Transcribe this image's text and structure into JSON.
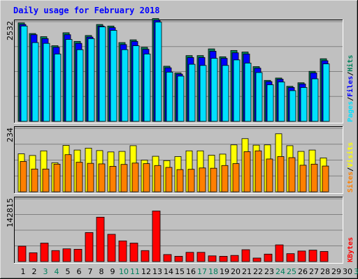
{
  "title": "Daily usage for February 2018",
  "colors": {
    "hits": "#00805c",
    "files": "#0000ff",
    "pages": "#00e0ff",
    "visits": "#ffff00",
    "sites": "#ff8000",
    "kbytes": "#ff0000",
    "weekday_label": "#000000",
    "weekend_label": "#00805c"
  },
  "chart_data": [
    {
      "type": "bar",
      "panel": "hits-files-pages",
      "title": "Daily usage for February 2018",
      "max_label": "2532",
      "ylim": [
        0,
        2532
      ],
      "grid": true,
      "legend": "right",
      "legend_parts": [
        "Pages",
        "/",
        "Files",
        "/",
        "Hits"
      ],
      "categories": [
        "1",
        "2",
        "3",
        "4",
        "5",
        "6",
        "7",
        "8",
        "9",
        "10",
        "11",
        "12",
        "13",
        "14",
        "15",
        "16",
        "17",
        "18",
        "19",
        "20",
        "21",
        "22",
        "23",
        "24",
        "25",
        "26",
        "27",
        "28"
      ],
      "series": [
        {
          "name": "Hits",
          "values": [
            2500,
            2230,
            2150,
            1920,
            2250,
            2030,
            2180,
            2460,
            2420,
            2000,
            2070,
            1880,
            2610,
            1400,
            1230,
            1670,
            1670,
            1840,
            1640,
            1800,
            1760,
            1390,
            1040,
            1100,
            890,
            980,
            1270,
            1590
          ]
        },
        {
          "name": "Files",
          "values": [
            2460,
            2200,
            2100,
            1880,
            2200,
            1980,
            2140,
            2420,
            2380,
            1950,
            2030,
            1830,
            2570,
            1360,
            1200,
            1620,
            1620,
            1780,
            1600,
            1740,
            1710,
            1350,
            1010,
            1070,
            860,
            950,
            1230,
            1540
          ]
        },
        {
          "name": "Pages",
          "values": [
            2420,
            2000,
            1980,
            1710,
            2080,
            1820,
            2100,
            2400,
            2310,
            1820,
            1920,
            1710,
            2520,
            1250,
            1150,
            1450,
            1420,
            1600,
            1420,
            1560,
            1480,
            1240,
            930,
            1000,
            780,
            860,
            1080,
            1460
          ]
        }
      ]
    },
    {
      "type": "bar",
      "panel": "visits-sites",
      "max_label": "234",
      "ylim": [
        0,
        234
      ],
      "grid": true,
      "legend": "right",
      "legend_parts": [
        "Sites",
        "/",
        "Visits"
      ],
      "categories": [
        "1",
        "2",
        "3",
        "4",
        "5",
        "6",
        "7",
        "8",
        "9",
        "10",
        "11",
        "12",
        "13",
        "14",
        "15",
        "16",
        "17",
        "18",
        "19",
        "20",
        "21",
        "22",
        "23",
        "24",
        "25",
        "26",
        "27",
        "28"
      ],
      "series": [
        {
          "name": "Visits",
          "values": [
            140,
            134,
            151,
            107,
            171,
            154,
            161,
            152,
            147,
            149,
            170,
            117,
            131,
            115,
            130,
            151,
            151,
            135,
            139,
            173,
            196,
            172,
            173,
            214,
            170,
            149,
            154,
            125
          ]
        },
        {
          "name": "Sites",
          "values": [
            112,
            84,
            84,
            102,
            137,
            109,
            105,
            103,
            94,
            101,
            106,
            104,
            97,
            90,
            82,
            83,
            88,
            87,
            97,
            104,
            148,
            151,
            121,
            130,
            126,
            98,
            102,
            95
          ]
        }
      ]
    },
    {
      "type": "bar",
      "panel": "kbytes",
      "max_label": "142815",
      "ylim": [
        0,
        142815
      ],
      "grid": true,
      "legend": "right",
      "legend_parts": [
        "KBytes"
      ],
      "categories": [
        "1",
        "2",
        "3",
        "4",
        "5",
        "6",
        "7",
        "8",
        "9",
        "10",
        "11",
        "12",
        "13",
        "14",
        "15",
        "16",
        "17",
        "18",
        "19",
        "20",
        "21",
        "22",
        "23",
        "24",
        "25",
        "26",
        "27",
        "28"
      ],
      "series": [
        {
          "name": "KBytes",
          "values": [
            35000,
            20000,
            42000,
            25000,
            29000,
            28000,
            66000,
            101000,
            62000,
            47000,
            42000,
            25000,
            115000,
            16000,
            12000,
            21000,
            21000,
            13000,
            12000,
            14000,
            27000,
            8000,
            17000,
            38000,
            18000,
            24000,
            26000,
            23000
          ]
        }
      ]
    }
  ],
  "x_axis_days": [
    "1",
    "2",
    "3",
    "4",
    "5",
    "6",
    "7",
    "8",
    "9",
    "10",
    "11",
    "12",
    "13",
    "14",
    "15",
    "16",
    "17",
    "18",
    "19",
    "20",
    "21",
    "22",
    "23",
    "24",
    "25",
    "26",
    "27",
    "28",
    "29",
    "30",
    "31"
  ],
  "weekend_days": [
    3,
    4,
    10,
    11,
    17,
    18,
    24,
    25,
    31
  ]
}
